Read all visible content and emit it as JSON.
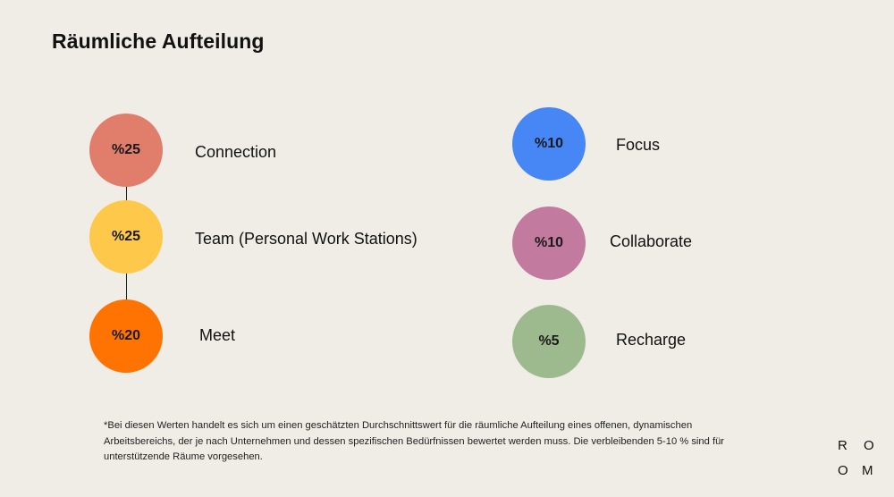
{
  "title": "Räumliche Aufteilung",
  "items_left": [
    {
      "percent": "%25",
      "label": "Connection",
      "color": "#e07d6b"
    },
    {
      "percent": "%25",
      "label": "Team (Personal Work Stations)",
      "color": "#fec94a"
    },
    {
      "percent": "%20",
      "label": "Meet",
      "color": "#fe7302"
    }
  ],
  "items_right": [
    {
      "percent": "%10",
      "label": "Focus",
      "color": "#4687f5"
    },
    {
      "percent": "%10",
      "label": "Collaborate",
      "color": "#c37a9f"
    },
    {
      "percent": "%5",
      "label": "Recharge",
      "color": "#9db98e"
    }
  ],
  "footnote": "*Bei diesen Werten handelt es sich um einen geschätzten Durchschnittswert für die räumliche Aufteilung eines offenen, dynamischen Arbeitsbereichs, der je nach Unternehmen und dessen spezifischen Bedürfnissen bewertet werden muss. Die verbleibenden 5-10 % sind für unterstützende Räume vorgesehen.",
  "logo": {
    "letters": [
      "R",
      "O",
      "O",
      "M"
    ]
  }
}
